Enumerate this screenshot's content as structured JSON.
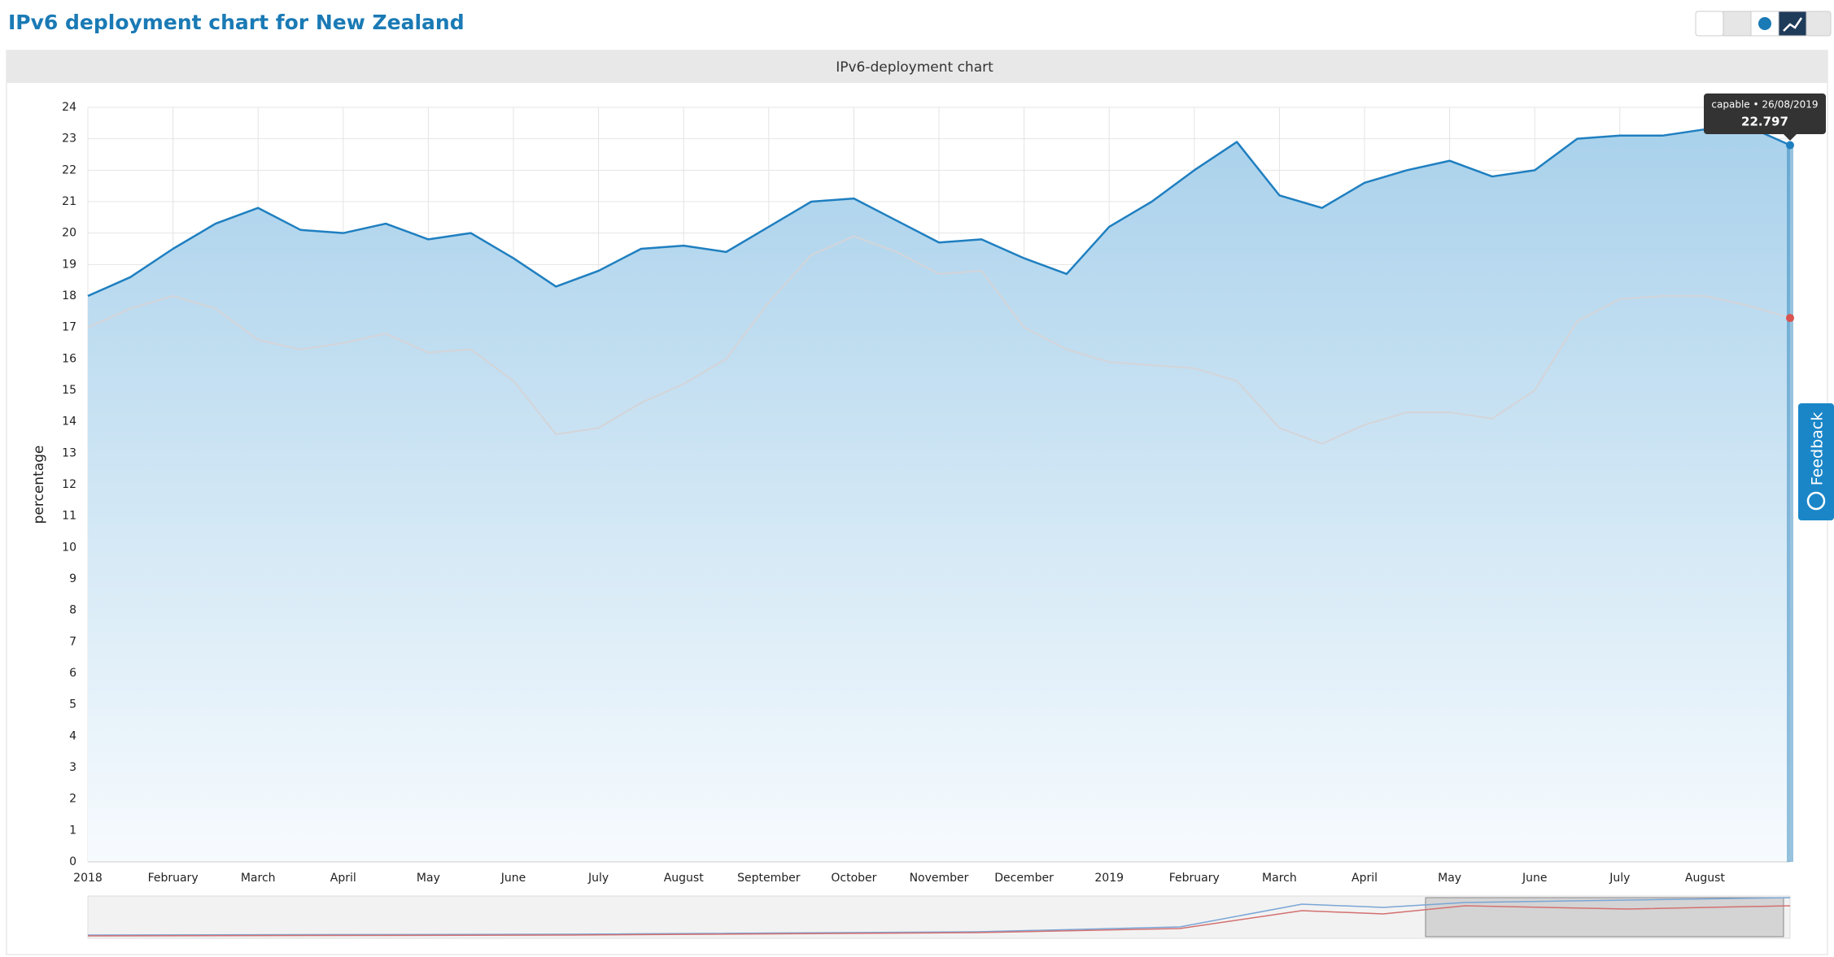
{
  "title": "IPv6 deployment chart for New Zealand",
  "panel_title": "IPv6-deployment chart",
  "feedback": "Feedback",
  "tooltip": {
    "title": "capable • 26/08/2019"
  },
  "chart_data": {
    "type": "line",
    "ylabel": "percentage",
    "categories": [
      "2018",
      null,
      "February",
      null,
      "March",
      null,
      "April",
      null,
      "May",
      null,
      "June",
      null,
      "July",
      null,
      "August",
      null,
      "September",
      null,
      "October",
      null,
      "November",
      null,
      "December",
      null,
      "2019",
      null,
      "February",
      null,
      "March",
      null,
      "April",
      null,
      "May",
      null,
      "June",
      null,
      "July",
      null,
      "August",
      null,
      null
    ],
    "series": [
      {
        "name": "capable",
        "color": "#1f7fc0",
        "values": [
          18.0,
          18.6,
          19.5,
          20.3,
          20.8,
          20.1,
          20.0,
          20.3,
          19.8,
          20.0,
          19.2,
          18.3,
          18.8,
          19.5,
          19.6,
          19.4,
          20.2,
          21.0,
          21.1,
          20.4,
          19.7,
          19.8,
          19.2,
          18.7,
          20.2,
          21.0,
          22.0,
          22.9,
          21.2,
          20.8,
          21.6,
          22.0,
          22.3,
          21.8,
          22.0,
          23.0,
          23.1,
          23.1,
          23.3,
          23.4,
          22.797
        ]
      },
      {
        "color": "#d4d4d8",
        "values": [
          17.0,
          17.6,
          18.0,
          17.6,
          16.6,
          16.3,
          16.5,
          16.8,
          16.2,
          16.3,
          15.3,
          13.6,
          13.8,
          14.6,
          15.2,
          16.0,
          17.8,
          19.3,
          19.9,
          19.4,
          18.7,
          18.8,
          17.0,
          16.3,
          15.9,
          15.8,
          15.7,
          15.3,
          13.8,
          13.3,
          13.9,
          14.3,
          14.3,
          14.1,
          15.0,
          17.2,
          17.9,
          18.0,
          18.0,
          17.7,
          17.3
        ]
      }
    ],
    "ylim": [
      0,
      24
    ],
    "yticks": [
      0,
      1,
      2,
      3,
      4,
      5,
      6,
      7,
      8,
      9,
      10,
      11,
      12,
      13,
      14,
      15,
      16,
      17,
      18,
      19,
      20,
      21,
      22,
      23,
      24
    ],
    "grid": true
  }
}
